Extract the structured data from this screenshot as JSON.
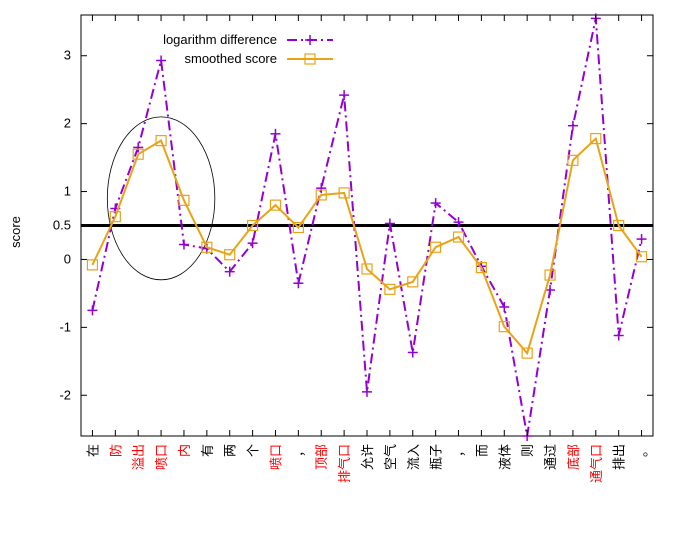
{
  "chart_data": {
    "type": "line",
    "ylabel": "score",
    "ylim": [
      -2.6,
      3.6
    ],
    "yticks": [
      "3",
      "2",
      "1",
      "0.5",
      "0",
      "-1",
      "-2"
    ],
    "ytick_values": [
      3,
      2,
      1,
      0.5,
      0,
      -1,
      -2
    ],
    "threshold": 0.5,
    "categories": [
      {
        "label": "在",
        "highlight": false
      },
      {
        "label": "防",
        "highlight": true
      },
      {
        "label": "溢出",
        "highlight": true
      },
      {
        "label": "喷口",
        "highlight": true
      },
      {
        "label": "内",
        "highlight": true
      },
      {
        "label": "有",
        "highlight": false
      },
      {
        "label": "两",
        "highlight": false
      },
      {
        "label": "个",
        "highlight": false
      },
      {
        "label": "喷口",
        "highlight": true
      },
      {
        "label": "，",
        "highlight": false
      },
      {
        "label": "顶部",
        "highlight": true
      },
      {
        "label": "排气口",
        "highlight": true
      },
      {
        "label": "允许",
        "highlight": false
      },
      {
        "label": "空气",
        "highlight": false
      },
      {
        "label": "流入",
        "highlight": false
      },
      {
        "label": "瓶子",
        "highlight": false
      },
      {
        "label": "，",
        "highlight": false
      },
      {
        "label": "而",
        "highlight": false
      },
      {
        "label": "液体",
        "highlight": false
      },
      {
        "label": "则",
        "highlight": false
      },
      {
        "label": "通过",
        "highlight": false
      },
      {
        "label": "底部",
        "highlight": true
      },
      {
        "label": "通气口",
        "highlight": true
      },
      {
        "label": "排出",
        "highlight": false
      },
      {
        "label": "。",
        "highlight": false
      }
    ],
    "series": [
      {
        "name": "logarithm difference",
        "color": "#9400d3",
        "marker": "plus",
        "style": "dash-dot",
        "values": [
          -0.75,
          0.75,
          1.65,
          2.93,
          0.22,
          0.16,
          -0.18,
          0.24,
          1.85,
          -0.35,
          1.05,
          2.42,
          -1.95,
          0.53,
          -1.37,
          0.83,
          0.55,
          -0.1,
          -0.7,
          -2.6,
          -0.45,
          1.97,
          3.55,
          -1.12,
          0.3
        ]
      },
      {
        "name": "smoothed score",
        "color": "#e8a317",
        "marker": "square",
        "style": "solid",
        "values": [
          -0.08,
          0.63,
          1.55,
          1.75,
          0.87,
          0.18,
          0.07,
          0.5,
          0.8,
          0.47,
          0.95,
          0.98,
          -0.14,
          -0.44,
          -0.33,
          0.18,
          0.33,
          -0.12,
          -0.99,
          -1.38,
          -0.23,
          1.46,
          1.78,
          0.5,
          0.04
        ]
      }
    ],
    "legend_position": "top-left"
  }
}
